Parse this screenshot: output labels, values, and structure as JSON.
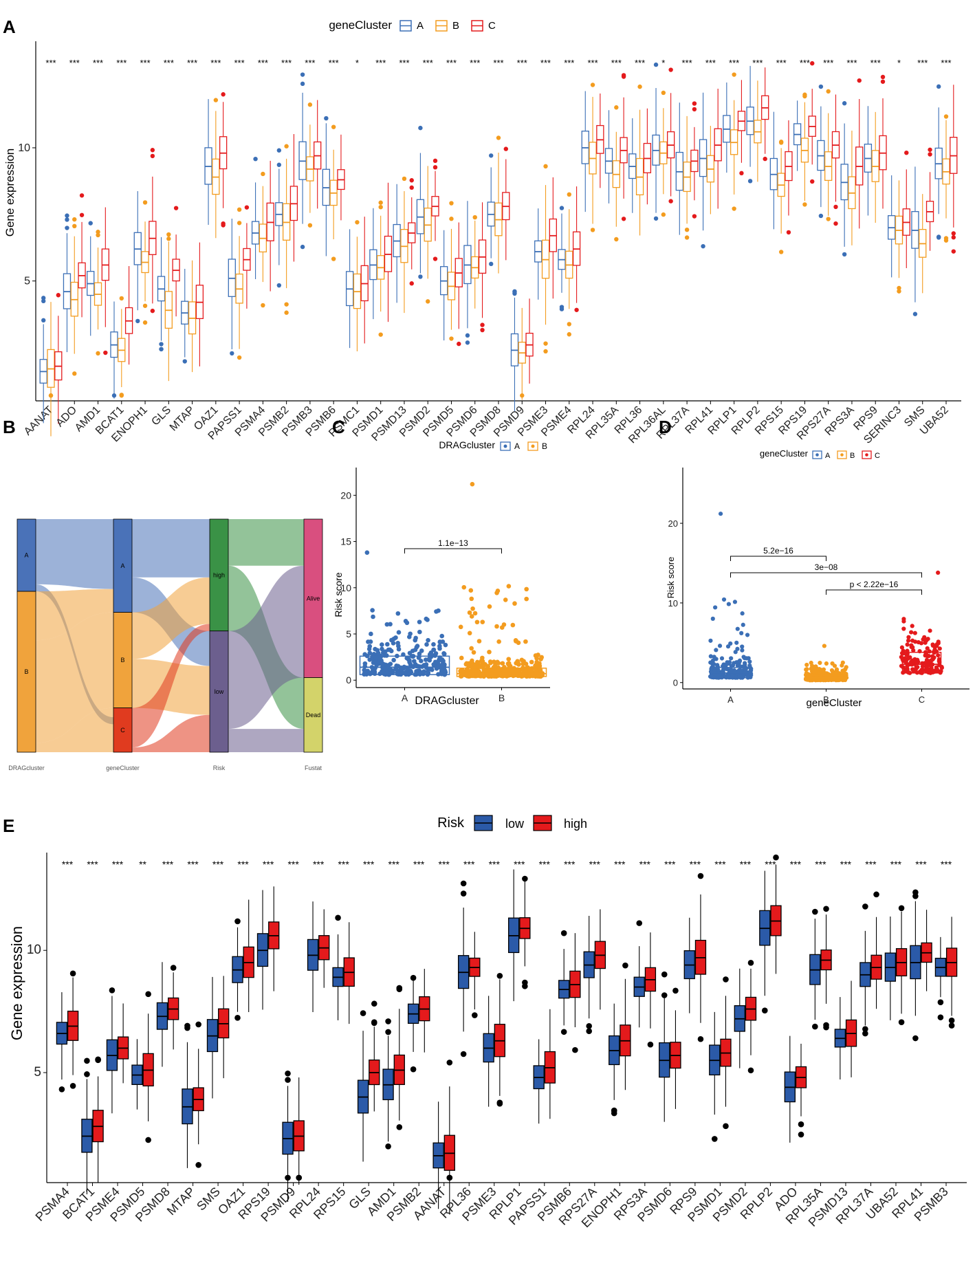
{
  "colors": {
    "A": "#3b6fb6",
    "B": "#f39c1f",
    "C": "#e41a1c",
    "low": "#2b5aa8",
    "high": "#e41a1c"
  },
  "chart_data": [
    {
      "id": "A",
      "panel_label": "A",
      "type": "box",
      "legend_title": "geneCluster",
      "legend": [
        "A",
        "B",
        "C"
      ],
      "ylabel": "Gene expression",
      "ylim": [
        0.5,
        14
      ],
      "yticks": [
        5,
        10
      ],
      "categories": [
        "AANAT",
        "ADO",
        "AMD1",
        "BCAT1",
        "ENOPH1",
        "GLS",
        "MTAP",
        "OAZ1",
        "PAPSS1",
        "PSMA4",
        "PSMB2",
        "PSMB3",
        "PSMB6",
        "PSMC1",
        "PSMD1",
        "PSMD13",
        "PSMD2",
        "PSMD5",
        "PSMD6",
        "PSMD8",
        "PSMD9",
        "PSME3",
        "PSME4",
        "RPL24",
        "RPL35A",
        "RPL36",
        "RPL36AL",
        "RPL37A",
        "RPL41",
        "RPLP1",
        "RPLP2",
        "RPS15",
        "RPS19",
        "RPS27A",
        "RPS3A",
        "RPS9",
        "SERINC3",
        "SMS",
        "UBA52"
      ],
      "significance": [
        "***",
        "***",
        "***",
        "***",
        "***",
        "***",
        "***",
        "***",
        "***",
        "***",
        "***",
        "***",
        "***",
        "*",
        "***",
        "***",
        "***",
        "***",
        "***",
        "***",
        "***",
        "***",
        "***",
        "***",
        "***",
        "***",
        "*",
        "***",
        "***",
        "***",
        "***",
        "***",
        "***",
        "***",
        "***",
        "***",
        "*",
        "***",
        "***"
      ],
      "medians": {
        "A": [
          1.6,
          4.6,
          4.9,
          2.6,
          6.2,
          4.7,
          3.8,
          9.3,
          5.1,
          6.8,
          7.5,
          9.5,
          8.5,
          4.7,
          5.6,
          6.5,
          7.4,
          5.0,
          5.6,
          7.5,
          2.4,
          6.1,
          5.8,
          10.0,
          9.5,
          9.3,
          9.9,
          9.1,
          9.6,
          10.7,
          11.0,
          9.0,
          10.5,
          9.7,
          8.7,
          9.6,
          7.0,
          6.9,
          9.4
        ],
        "B": [
          1.7,
          4.3,
          4.5,
          2.4,
          5.7,
          3.9,
          3.6,
          8.9,
          4.7,
          6.6,
          7.2,
          9.2,
          8.3,
          4.6,
          5.5,
          6.3,
          7.1,
          4.8,
          5.5,
          7.3,
          2.3,
          5.8,
          5.6,
          9.6,
          9.0,
          8.9,
          9.8,
          8.9,
          9.2,
          10.2,
          10.6,
          8.6,
          9.9,
          9.3,
          8.3,
          9.3,
          6.9,
          6.4,
          9.1
        ],
        "C": [
          1.8,
          5.2,
          5.6,
          3.5,
          6.6,
          5.4,
          4.2,
          9.8,
          5.8,
          7.2,
          7.9,
          9.7,
          8.8,
          4.9,
          6.0,
          6.8,
          7.8,
          5.3,
          5.9,
          7.8,
          2.6,
          6.7,
          6.2,
          10.3,
          9.9,
          9.6,
          10.1,
          9.5,
          10.1,
          11.0,
          11.5,
          9.3,
          10.8,
          10.1,
          9.3,
          9.8,
          7.2,
          7.6,
          9.7
        ]
      }
    },
    {
      "id": "B",
      "panel_label": "B",
      "type": "alluvial",
      "axes": [
        "DRAGcluster",
        "geneCluster",
        "Risk",
        "Fustat"
      ],
      "strata": [
        [
          {
            "label": "A",
            "share": 0.31,
            "color": "#4a72b8"
          },
          {
            "label": "B",
            "share": 0.69,
            "color": "#f0a33c"
          }
        ],
        [
          {
            "label": "A",
            "share": 0.4,
            "color": "#4a72b8"
          },
          {
            "label": "B",
            "share": 0.41,
            "color": "#f0a33c"
          },
          {
            "label": "C",
            "share": 0.19,
            "color": "#e03b1f"
          }
        ],
        [
          {
            "label": "high",
            "share": 0.48,
            "color": "#3a9246"
          },
          {
            "label": "low",
            "share": 0.52,
            "color": "#6c5f8e"
          }
        ],
        [
          {
            "label": "Alive",
            "share": 0.68,
            "color": "#d94f7f"
          },
          {
            "label": "Dead",
            "share": 0.32,
            "color": "#d3d36a"
          }
        ]
      ]
    },
    {
      "id": "C",
      "panel_label": "C",
      "type": "box+jitter",
      "legend_title": "DRAGcluster",
      "legend": [
        "A",
        "B"
      ],
      "categories": [
        "A",
        "B"
      ],
      "xlabel": "DRAGcluster",
      "ylabel": "Risk score",
      "ylim": [
        -0.8,
        23
      ],
      "yticks": [
        0,
        5,
        10,
        15,
        20
      ],
      "box_stats": [
        {
          "q1": 0.6,
          "median": 1.4,
          "q3": 2.6
        },
        {
          "q1": 0.4,
          "median": 0.7,
          "q3": 1.3
        }
      ],
      "max_points": [
        13.8,
        21.2
      ],
      "comparisons": [
        {
          "from": "A",
          "to": "B",
          "label": "1.1e−13"
        }
      ]
    },
    {
      "id": "D",
      "panel_label": "D",
      "type": "box+jitter",
      "legend_title": "geneCluster",
      "legend": [
        "A",
        "B",
        "C"
      ],
      "categories": [
        "A",
        "B",
        "C"
      ],
      "xlabel": "geneCluster",
      "ylabel": "Risk score",
      "ylim": [
        -0.8,
        27
      ],
      "yticks": [
        0,
        10,
        20
      ],
      "box_stats": [
        {
          "q1": 0.6,
          "median": 1.2,
          "q3": 1.9
        },
        {
          "q1": 0.3,
          "median": 0.6,
          "q3": 0.9
        },
        {
          "q1": 1.2,
          "median": 2.3,
          "q3": 3.8
        }
      ],
      "max_points": [
        21.2,
        4.6,
        13.8
      ],
      "comparisons": [
        {
          "from": "A",
          "to": "B",
          "label": "5.2e−16"
        },
        {
          "from": "A",
          "to": "C",
          "label": "3e−08"
        },
        {
          "from": "B",
          "to": "C",
          "label": "p < 2.22e−16"
        }
      ]
    },
    {
      "id": "E",
      "panel_label": "E",
      "type": "box",
      "legend_title": "Risk",
      "legend": [
        "low",
        "high"
      ],
      "ylabel": "Gene expression",
      "ylim": [
        0.5,
        14
      ],
      "yticks": [
        5,
        10
      ],
      "categories": [
        "PSMA4",
        "BCAT1",
        "PSME4",
        "PSMD5",
        "PSMD8",
        "MTAP",
        "SMS",
        "OAZ1",
        "RPS19",
        "PSMD9",
        "RPL24",
        "RPS15",
        "GLS",
        "AMD1",
        "PSMB2",
        "AANAT",
        "RPL36",
        "PSME3",
        "RPLP1",
        "PAPSS1",
        "PSMB6",
        "RPS27A",
        "ENOPH1",
        "RPS3A",
        "PSMD6",
        "RPS9",
        "PSMD1",
        "PSMD2",
        "RPLP2",
        "ADO",
        "RPL35A",
        "PSMD13",
        "RPL37A",
        "UBA52",
        "RPL41",
        "PSMB3"
      ],
      "significance": [
        "***",
        "***",
        "***",
        "**",
        "***",
        "***",
        "***",
        "***",
        "***",
        "***",
        "***",
        "***",
        "***",
        "***",
        "***",
        "***",
        "***",
        "***",
        "***",
        "***",
        "***",
        "***",
        "***",
        "***",
        "***",
        "***",
        "***",
        "***",
        "***",
        "***",
        "***",
        "***",
        "***",
        "***",
        "***",
        "***"
      ],
      "medians": {
        "low": [
          6.6,
          2.4,
          5.7,
          4.9,
          7.3,
          3.6,
          6.5,
          9.2,
          10.0,
          2.3,
          9.8,
          8.9,
          4.0,
          4.5,
          7.4,
          1.6,
          9.1,
          6.0,
          10.6,
          4.8,
          8.4,
          9.4,
          5.9,
          8.5,
          5.5,
          9.4,
          5.5,
          7.2,
          10.9,
          4.4,
          9.2,
          6.4,
          9.0,
          9.3,
          9.5,
          9.3
        ],
        "high": [
          6.9,
          2.8,
          6.0,
          5.1,
          7.6,
          3.9,
          7.0,
          9.5,
          10.6,
          2.4,
          10.1,
          9.1,
          5.0,
          5.1,
          7.6,
          1.7,
          9.3,
          6.3,
          10.9,
          5.2,
          8.6,
          9.8,
          6.3,
          8.8,
          5.7,
          9.7,
          5.8,
          7.6,
          11.2,
          4.8,
          9.6,
          6.6,
          9.3,
          9.5,
          9.9,
          9.5
        ]
      }
    }
  ]
}
